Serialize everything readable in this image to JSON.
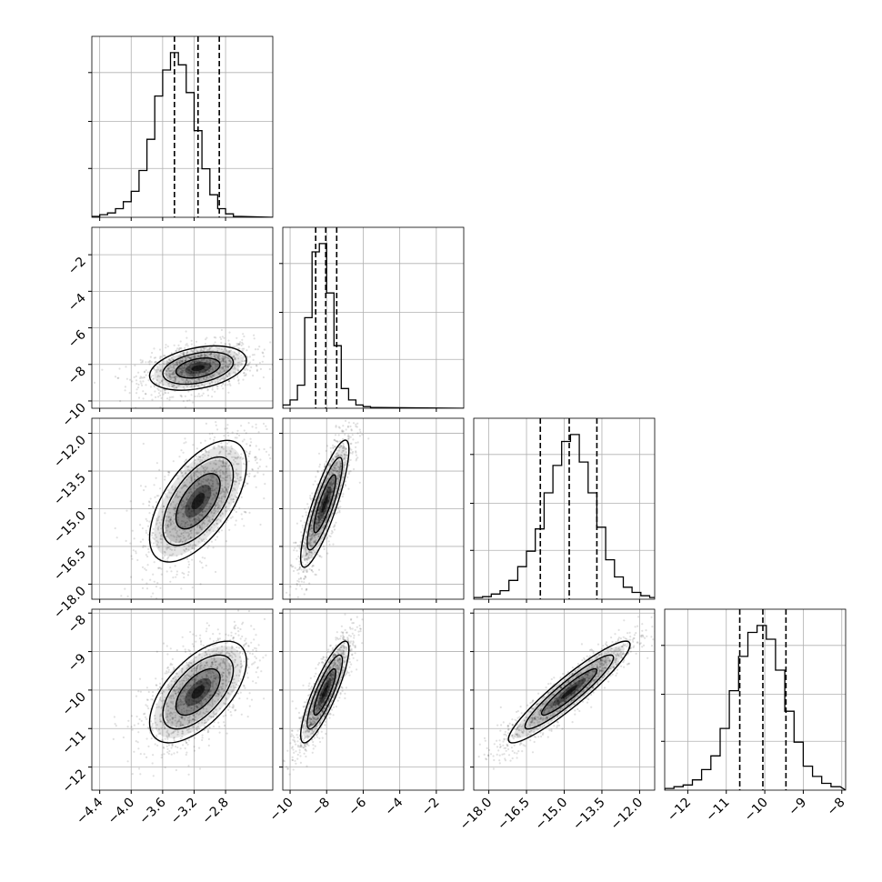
{
  "chart_data": {
    "type": "corner",
    "title": "",
    "dimensions": 4,
    "ranges": [
      [
        -4.5,
        -2.2
      ],
      [
        -10.4,
        -0.5
      ],
      [
        -18.6,
        -11.4
      ],
      [
        -12.6,
        -7.9
      ]
    ],
    "tick_labels": [
      [
        "-4.4",
        "-4.0",
        "-3.6",
        "-3.2",
        "-2.8"
      ],
      [
        "-10",
        "-8",
        "-6",
        "-4",
        "-2"
      ],
      [
        "-18.0",
        "-16.5",
        "-15.0",
        "-13.5",
        "-12.0"
      ],
      [
        "-12",
        "-11",
        "-10",
        "-9",
        "-8"
      ]
    ],
    "row_tick_labels": [
      [],
      [
        "-2",
        "-4",
        "-6",
        "-8",
        "-10"
      ],
      [
        "-12.0",
        "-13.5",
        "-15.0",
        "-16.5",
        "-18.0"
      ],
      [
        "-8",
        "-9",
        "-10",
        "-11",
        "-12"
      ]
    ],
    "quantile_lines": [
      [
        -3.45,
        -3.15,
        -2.88
      ],
      [
        -8.6,
        -8.05,
        -7.45
      ],
      [
        -15.95,
        -14.8,
        -13.7
      ],
      [
        -10.65,
        -10.05,
        -9.45
      ]
    ],
    "histograms": [
      {
        "x_start": -4.5,
        "bin_width": 0.1,
        "counts": [
          0.5,
          1.5,
          2.5,
          5,
          9,
          15,
          27,
          45,
          70,
          85,
          95,
          88,
          72,
          50,
          28,
          13,
          5,
          2,
          0.5
        ]
      },
      {
        "x_start": -10.4,
        "bin_width": 0.4,
        "counts": [
          2,
          5,
          14,
          55,
          95,
          100,
          70,
          38,
          12,
          5,
          2,
          1,
          0.5
        ]
      },
      {
        "x_start": -18.6,
        "bin_width": 0.35,
        "counts": [
          1,
          1.5,
          3,
          5,
          11,
          19,
          28,
          41,
          62,
          78,
          92,
          96,
          80,
          62,
          42,
          23,
          13,
          7,
          4,
          2,
          1
        ]
      },
      {
        "x_start": -12.6,
        "bin_width": 0.24,
        "counts": [
          1,
          2,
          3,
          6,
          12,
          20,
          36,
          58,
          78,
          92,
          96,
          88,
          70,
          46,
          28,
          14,
          8,
          4,
          2
        ]
      }
    ],
    "pair_correlations": [
      {
        "x": 0,
        "y": 1,
        "cx": -3.15,
        "cy": -8.2,
        "sx": 0.28,
        "sy": 0.55,
        "rho": 0.35
      },
      {
        "x": 0,
        "y": 2,
        "cx": -3.15,
        "cy": -14.7,
        "sx": 0.28,
        "sy": 1.1,
        "rho": 0.6
      },
      {
        "x": 1,
        "y": 2,
        "cx": -8.1,
        "cy": -14.8,
        "sx": 0.6,
        "sy": 1.15,
        "rho": 0.85
      },
      {
        "x": 0,
        "y": 3,
        "cx": -3.15,
        "cy": -10.05,
        "sx": 0.28,
        "sy": 0.6,
        "rho": 0.6
      },
      {
        "x": 1,
        "y": 3,
        "cx": -8.1,
        "cy": -10.05,
        "sx": 0.6,
        "sy": 0.6,
        "rho": 0.85
      },
      {
        "x": 2,
        "y": 3,
        "cx": -14.8,
        "cy": -10.05,
        "sx": 1.1,
        "sy": 0.6,
        "rho": 0.93
      }
    ],
    "grid": true,
    "colors": {
      "contour": "#000000",
      "points": "#000000",
      "grid": "#b0b0b0"
    }
  }
}
